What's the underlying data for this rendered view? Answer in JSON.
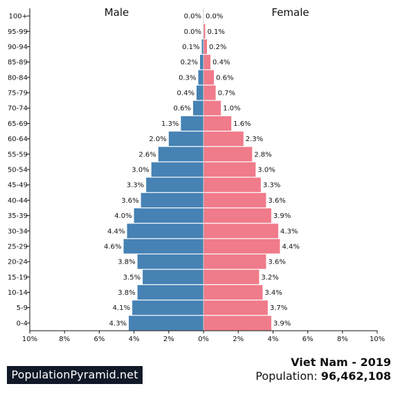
{
  "chart_data": {
    "type": "bar",
    "orientation": "horizontal-population-pyramid",
    "categories": [
      "0-4",
      "5-9",
      "10-14",
      "15-19",
      "20-24",
      "25-29",
      "30-34",
      "35-39",
      "40-44",
      "45-49",
      "50-54",
      "55-59",
      "60-64",
      "65-69",
      "70-74",
      "75-79",
      "80-84",
      "85-89",
      "90-94",
      "95-99",
      "100+"
    ],
    "series": [
      {
        "name": "Male",
        "color": "#4682b4",
        "values": [
          4.3,
          4.1,
          3.8,
          3.5,
          3.8,
          4.6,
          4.4,
          4.0,
          3.6,
          3.3,
          3.0,
          2.6,
          2.0,
          1.3,
          0.6,
          0.4,
          0.3,
          0.2,
          0.1,
          0.0,
          0.0
        ]
      },
      {
        "name": "Female",
        "color": "#f07b8a",
        "values": [
          3.9,
          3.7,
          3.4,
          3.2,
          3.6,
          4.4,
          4.3,
          3.9,
          3.6,
          3.3,
          3.0,
          2.8,
          2.3,
          1.6,
          1.0,
          0.7,
          0.6,
          0.4,
          0.2,
          0.1,
          0.0
        ]
      }
    ],
    "value_labels": {
      "male": [
        "4.3%",
        "4.1%",
        "3.8%",
        "3.5%",
        "3.8%",
        "4.6%",
        "4.4%",
        "4.0%",
        "3.6%",
        "3.3%",
        "3.0%",
        "2.6%",
        "2.0%",
        "1.3%",
        "0.6%",
        "0.4%",
        "0.3%",
        "0.2%",
        "0.1%",
        "0.0%",
        "0.0%"
      ],
      "female": [
        "3.9%",
        "3.7%",
        "3.4%",
        "3.2%",
        "3.6%",
        "4.4%",
        "4.3%",
        "3.9%",
        "3.6%",
        "3.3%",
        "3.0%",
        "2.8%",
        "2.3%",
        "1.6%",
        "1.0%",
        "0.7%",
        "0.6%",
        "0.4%",
        "0.2%",
        "0.1%",
        "0.0%"
      ]
    },
    "xlim": [
      -10,
      10
    ],
    "xticks": [
      -10,
      -8,
      -6,
      -4,
      -2,
      0,
      2,
      4,
      6,
      8,
      10
    ],
    "xtick_labels": [
      "10%",
      "8%",
      "6%",
      "4%",
      "2%",
      "0%",
      "2%",
      "4%",
      "6%",
      "8%",
      "10%"
    ],
    "title": "",
    "xlabel": "",
    "ylabel": "",
    "grid": false
  },
  "footer": {
    "brand": "PopulationPyramid.net",
    "country_year": "Viet Nam - 2019",
    "population_label": "Population:",
    "population_value": "96,462,108"
  }
}
